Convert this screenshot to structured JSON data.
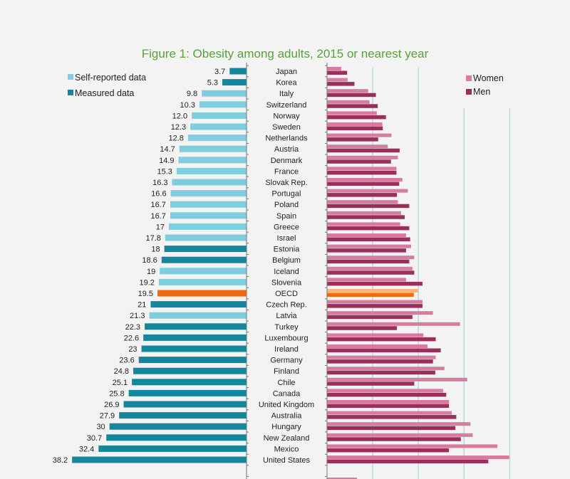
{
  "chart_data": {
    "type": "bar",
    "title": "Figure 1: Obesity among adults, 2015 or nearest year",
    "categories": [
      "Japan",
      "Korea",
      "Italy",
      "Switzerland",
      "Norway",
      "Sweden",
      "Netherlands",
      "Austria",
      "Denmark",
      "France",
      "Slovak Rep.",
      "Portugal",
      "Poland",
      "Spain",
      "Greece",
      "Israel",
      "Estonia",
      "Belgium",
      "Iceland",
      "Slovenia",
      "OECD",
      "Czech Rep.",
      "Latvia",
      "Turkey",
      "Luxembourg",
      "Ireland",
      "Germany",
      "Finland",
      "Chile",
      "Canada",
      "United Kingdom",
      "Australia",
      "Hungary",
      "New Zealand",
      "Mexico",
      "United States"
    ],
    "total": {
      "values": [
        3.7,
        5.3,
        9.8,
        10.3,
        12.0,
        12.3,
        12.8,
        14.7,
        14.9,
        15.3,
        16.3,
        16.6,
        16.7,
        16.7,
        17,
        17.8,
        18,
        18.6,
        19,
        19.2,
        19.5,
        21,
        21.3,
        22.3,
        22.6,
        23,
        23.6,
        24.8,
        25.1,
        25.8,
        26.9,
        27.9,
        30,
        30.7,
        32.4,
        38.2
      ],
      "labels": [
        "3.7",
        "5.3",
        "9.8",
        "10.3",
        "12.0",
        "12.3",
        "12.8",
        "14.7",
        "14.9",
        "15.3",
        "16.3",
        "16.6",
        "16.7",
        "16.7",
        "17",
        "17.8",
        "18",
        "18.6",
        "19",
        "19.2",
        "19.5",
        "21",
        "21.3",
        "22.3",
        "22.6",
        "23",
        "23.6",
        "24.8",
        "25.1",
        "25.8",
        "26.9",
        "27.9",
        "30",
        "30.7",
        "32.4",
        "38.2"
      ],
      "data_type": [
        "measured",
        "measured",
        "self",
        "self",
        "self",
        "self",
        "self",
        "self",
        "self",
        "self",
        "self",
        "self",
        "self",
        "self",
        "self",
        "self",
        "measured",
        "measured",
        "self",
        "self",
        "oecd",
        "measured",
        "self",
        "measured",
        "measured",
        "measured",
        "measured",
        "measured",
        "measured",
        "measured",
        "measured",
        "measured",
        "measured",
        "measured",
        "measured",
        "measured"
      ]
    },
    "series": [
      {
        "name": "Women",
        "values": [
          3.1,
          4.5,
          9.0,
          9.3,
          10.9,
          12.1,
          14.1,
          13.3,
          15.5,
          15.2,
          16.5,
          17.7,
          15.5,
          16.2,
          16.0,
          17.3,
          18.4,
          19.1,
          18.7,
          17.3,
          19.9,
          20.9,
          23.2,
          29.1,
          21.1,
          22.0,
          23.8,
          25.7,
          30.7,
          25.4,
          26.7,
          27.3,
          31.4,
          31.9,
          37.3,
          39.9
        ]
      },
      {
        "name": "Men",
        "values": [
          4.4,
          6.0,
          10.7,
          11.1,
          12.9,
          12.2,
          11.2,
          15.9,
          14.0,
          15.2,
          15.8,
          15.3,
          18.0,
          17.0,
          18.0,
          18.2,
          17.3,
          18.0,
          19.1,
          20.9,
          19.0,
          20.9,
          18.7,
          15.3,
          23.8,
          24.9,
          23.2,
          23.7,
          19.1,
          26.1,
          26.7,
          28.3,
          28.1,
          29.3,
          26.7,
          35.3
        ]
      }
    ],
    "legend_left": [
      "Self-reported data",
      "Measured data"
    ],
    "legend_right": [
      "Women",
      "Men"
    ],
    "xlim": [
      0,
      40
    ],
    "grid": true,
    "colors": {
      "self": "#80cde0",
      "measured": "#14879c",
      "oecd": "#f26a10",
      "women": "#d77c9e",
      "men": "#9a2f59",
      "women_oecd": "#f7b77a",
      "men_oecd": "#f26a10",
      "grid": "#b8d8e0",
      "title": "#5b9f3c"
    }
  }
}
